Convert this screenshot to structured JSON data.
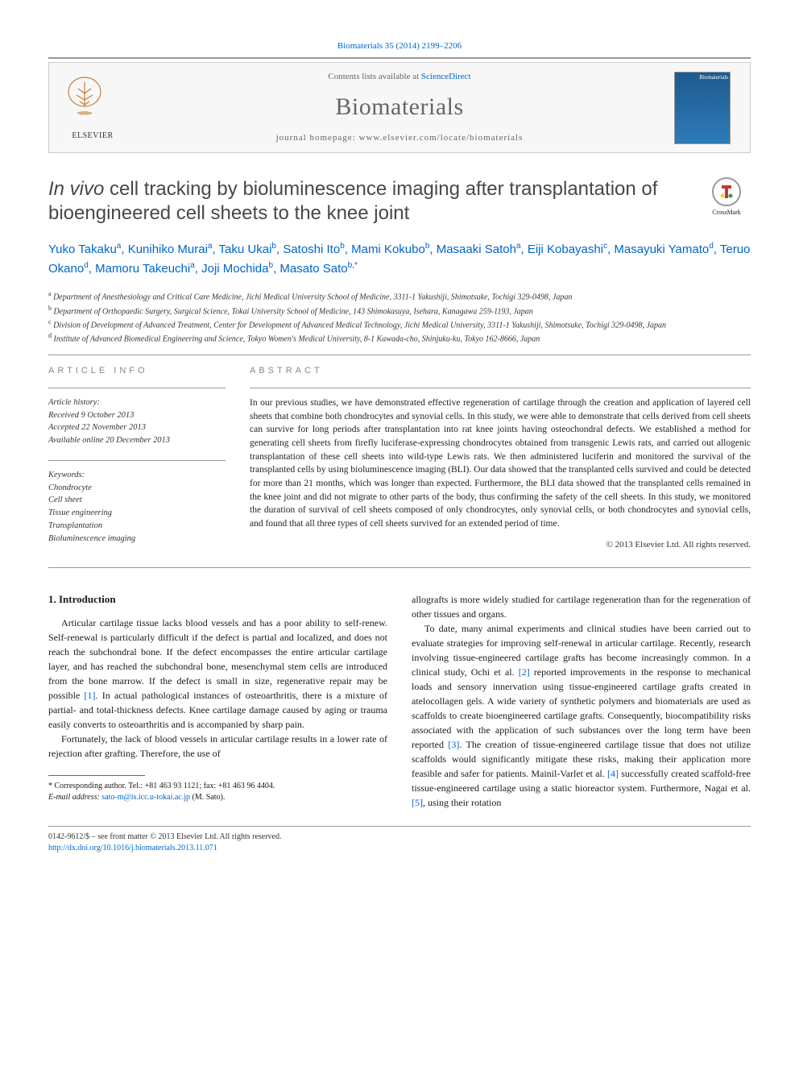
{
  "header": {
    "citation": "Biomaterials 35 (2014) 2199–2206",
    "contents_prefix": "Contents lists available at ",
    "contents_link": "ScienceDirect",
    "journal_name": "Biomaterials",
    "homepage_prefix": "journal homepage: ",
    "homepage_url": "www.elsevier.com/locate/biomaterials",
    "publisher_name": "ELSEVIER",
    "cover_label": "Biomaterials"
  },
  "crossmark": {
    "label": "CrossMark"
  },
  "title": {
    "italic_part": "In vivo",
    "rest": " cell tracking by bioluminescence imaging after transplantation of bioengineered cell sheets to the knee joint"
  },
  "authors_html": "Yuko Takaku<span class='sup'>a</span>, Kunihiko Murai<span class='sup'>a</span>, Taku Ukai<span class='sup'>b</span>, Satoshi Ito<span class='sup'>b</span>, Mami Kokubo<span class='sup'>b</span>, Masaaki Satoh<span class='sup'>a</span>, Eiji Kobayashi<span class='sup'>c</span>, Masayuki Yamato<span class='sup'>d</span>, Teruo Okano<span class='sup'>d</span>, Mamoru Takeuchi<span class='sup'>a</span>, Joji Mochida<span class='sup'>b</span>, Masato Sato<span class='sup'>b,</span><span class='sup star'>*</span>",
  "affiliations": {
    "a": "Department of Anesthesiology and Critical Care Medicine, Jichi Medical University School of Medicine, 3311-1 Yakushiji, Shimotsuke, Tochigi 329-0498, Japan",
    "b": "Department of Orthopaedic Surgery, Surgical Science, Tokai University School of Medicine, 143 Shimokasuya, Isehara, Kanagawa 259-1193, Japan",
    "c": "Division of Development of Advanced Treatment, Center for Development of Advanced Medical Technology, Jichi Medical University, 3311-1 Yakushiji, Shimotsuke, Tochigi 329-0498, Japan",
    "d": "Institute of Advanced Biomedical Engineering and Science, Tokyo Women's Medical University, 8-1 Kawada-cho, Shinjuku-ku, Tokyo 162-8666, Japan"
  },
  "article_info": {
    "heading": "ARTICLE INFO",
    "history_label": "Article history:",
    "received": "Received 9 October 2013",
    "accepted": "Accepted 22 November 2013",
    "available": "Available online 20 December 2013",
    "keywords_label": "Keywords:",
    "keywords": [
      "Chondrocyte",
      "Cell sheet",
      "Tissue engineering",
      "Transplantation",
      "Bioluminescence imaging"
    ]
  },
  "abstract": {
    "heading": "ABSTRACT",
    "text": "In our previous studies, we have demonstrated effective regeneration of cartilage through the creation and application of layered cell sheets that combine both chondrocytes and synovial cells. In this study, we were able to demonstrate that cells derived from cell sheets can survive for long periods after transplantation into rat knee joints having osteochondral defects. We established a method for generating cell sheets from firefly luciferase-expressing chondrocytes obtained from transgenic Lewis rats, and carried out allogenic transplantation of these cell sheets into wild-type Lewis rats. We then administered luciferin and monitored the survival of the transplanted cells by using bioluminescence imaging (BLI). Our data showed that the transplanted cells survived and could be detected for more than 21 months, which was longer than expected. Furthermore, the BLI data showed that the transplanted cells remained in the knee joint and did not migrate to other parts of the body, thus confirming the safety of the cell sheets. In this study, we monitored the duration of survival of cell sheets composed of only chondrocytes, only synovial cells, or both chondrocytes and synovial cells, and found that all three types of cell sheets survived for an extended period of time.",
    "copyright": "© 2013 Elsevier Ltd. All rights reserved."
  },
  "body": {
    "section_heading": "1. Introduction",
    "col1_p1": "Articular cartilage tissue lacks blood vessels and has a poor ability to self-renew. Self-renewal is particularly difficult if the defect is partial and localized, and does not reach the subchondral bone. If the defect encompasses the entire articular cartilage layer, and has reached the subchondral bone, mesenchymal stem cells are introduced from the bone marrow. If the defect is small in size, regenerative repair may be possible [1]. In actual pathological instances of osteoarthritis, there is a mixture of partial- and total-thickness defects. Knee cartilage damage caused by aging or trauma easily converts to osteoarthritis and is accompanied by sharp pain.",
    "col1_p2": "Fortunately, the lack of blood vessels in articular cartilage results in a lower rate of rejection after grafting. Therefore, the use of",
    "col2_p1": "allografts is more widely studied for cartilage regeneration than for the regeneration of other tissues and organs.",
    "col2_p2": "To date, many animal experiments and clinical studies have been carried out to evaluate strategies for improving self-renewal in articular cartilage. Recently, research involving tissue-engineered cartilage grafts has become increasingly common. In a clinical study, Ochi et al. [2] reported improvements in the response to mechanical loads and sensory innervation using tissue-engineered cartilage grafts created in atelocollagen gels. A wide variety of synthetic polymers and biomaterials are used as scaffolds to create bioengineered cartilage grafts. Consequently, biocompatibility risks associated with the application of such substances over the long term have been reported [3]. The creation of tissue-engineered cartilage tissue that does not utilize scaffolds would significantly mitigate these risks, making their application more feasible and safer for patients. Mainil-Varlet et al. [4] successfully created scaffold-free tissue-engineered cartilage using a static bioreactor system. Furthermore, Nagai et al. [5], using their rotation"
  },
  "footnote": {
    "corr": "* Corresponding author. Tel.: +81 463 93 1121; fax: +81 463 96 4404.",
    "email_label": "E-mail address: ",
    "email": "sato-m@is.icc.u-tokai.ac.jp",
    "email_suffix": " (M. Sato)."
  },
  "footer": {
    "line1": "0142-9612/$ – see front matter © 2013 Elsevier Ltd. All rights reserved.",
    "doi": "http://dx.doi.org/10.1016/j.biomaterials.2013.11.071"
  },
  "refs": {
    "r1": "[1]",
    "r2": "[2]",
    "r3": "[3]",
    "r4": "[4]",
    "r5": "[5]"
  },
  "colors": {
    "link": "#0066cc",
    "heading_gray": "#888888",
    "text": "#1a1a1a",
    "rule": "#999999"
  }
}
